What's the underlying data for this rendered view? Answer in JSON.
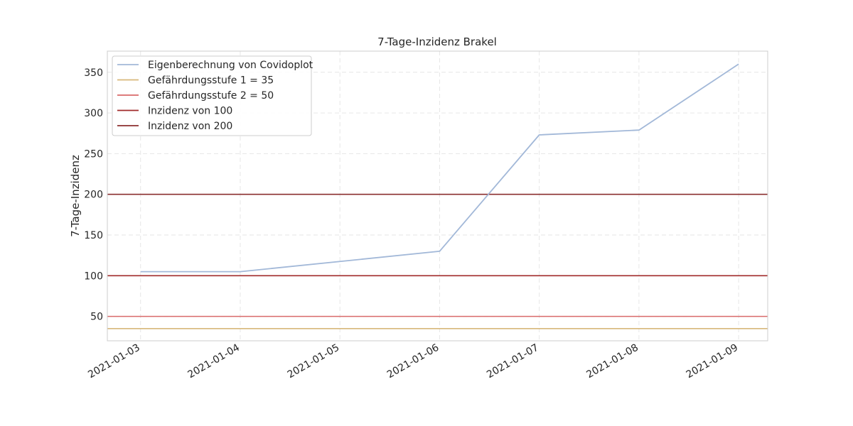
{
  "chart_data": {
    "type": "line",
    "title": "7-Tage-Inzidenz Brakel",
    "xlabel": "",
    "ylabel": "7-Tage-Inzidenz",
    "x": [
      "2021-01-03",
      "2021-01-04",
      "2021-01-05",
      "2021-01-06",
      "2021-01-07",
      "2021-01-08",
      "2021-01-09"
    ],
    "x_tick_labels": [
      "2021-01-03",
      "2021-01-04",
      "2021-01-05",
      "2021-01-06",
      "2021-01-07",
      "2021-01-08",
      "2021-01-09"
    ],
    "y_ticks": [
      50,
      100,
      150,
      200,
      250,
      300,
      350
    ],
    "xlim": [
      "2021-01-02T16:00",
      "2021-01-09T07:00"
    ],
    "ylim": [
      20,
      376
    ],
    "grid": true,
    "legend_position": "top-left",
    "series": [
      {
        "name": "Eigenberechnung von Covidoplot",
        "color": "#a2b8d8",
        "points": [
          {
            "x": "2021-01-03",
            "y": 105
          },
          {
            "x": "2021-01-04",
            "y": 105
          },
          {
            "x": "2021-01-06",
            "y": 130
          },
          {
            "x": "2021-01-07",
            "y": 273
          },
          {
            "x": "2021-01-08",
            "y": 279
          },
          {
            "x": "2021-01-09",
            "y": 360
          }
        ]
      }
    ],
    "reference_lines": [
      {
        "name": "Gefährdungsstufe 1 = 35",
        "y": 35,
        "color": "#d8b87a"
      },
      {
        "name": "Gefährdungsstufe 2 = 50",
        "y": 50,
        "color": "#d96a6a"
      },
      {
        "name": "Inzidenz von 100",
        "y": 100,
        "color": "#a02a2a"
      },
      {
        "name": "Inzidenz von 200",
        "y": 200,
        "color": "#8b2f2f"
      }
    ]
  }
}
